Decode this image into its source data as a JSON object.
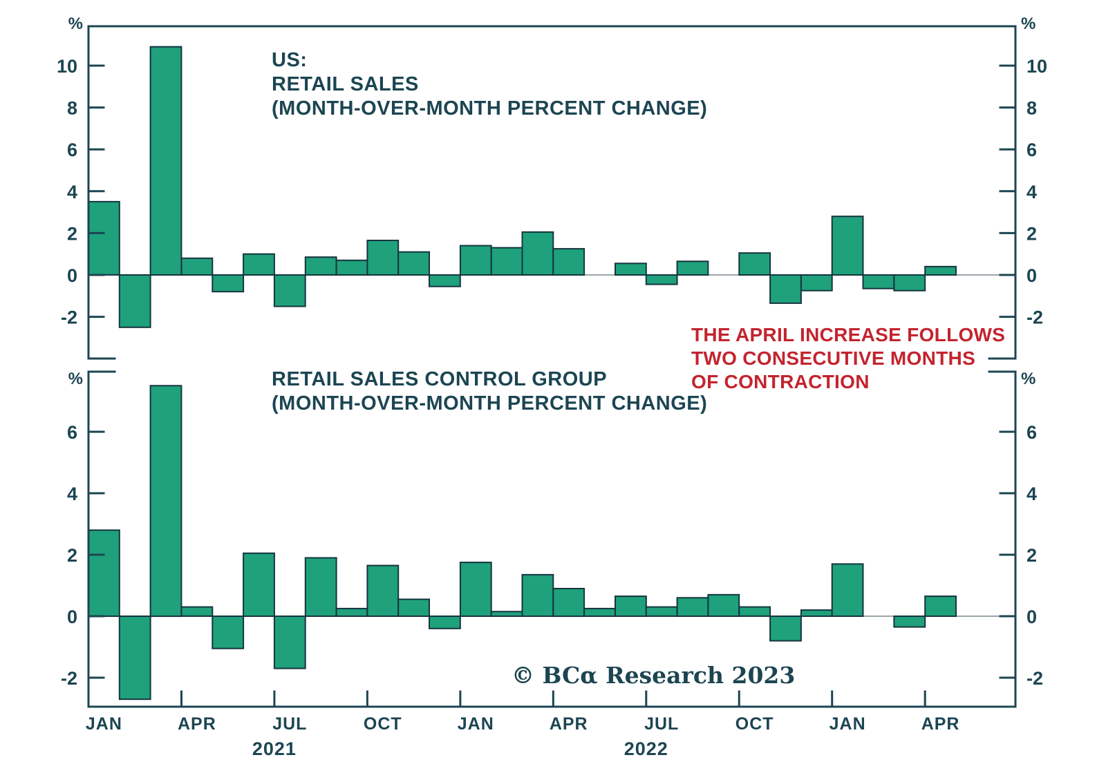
{
  "page": {
    "background": "#ffffff"
  },
  "colors": {
    "ink": "#1C4552",
    "bar_fill": "#1FA17C",
    "bar_border": "#15343E",
    "zero_line": "#99A5A9",
    "annotation_red": "#C3242E"
  },
  "annotation": {
    "lines": [
      "THE APRIL INCREASE FOLLOWS",
      "TWO CONSECUTIVE MONTHS",
      "OF CONTRACTION"
    ]
  },
  "copyright": "© BCα Research 2023",
  "chart_data": [
    {
      "type": "bar",
      "title_lines": [
        "US:",
        "RETAIL SALES",
        "(MONTH-OVER-MONTH PERCENT CHANGE)"
      ],
      "unit": "%",
      "categories": [
        "Jan 2021",
        "Feb 2021",
        "Mar 2021",
        "Apr 2021",
        "May 2021",
        "Jun 2021",
        "Jul 2021",
        "Aug 2021",
        "Sep 2021",
        "Oct 2021",
        "Nov 2021",
        "Dec 2021",
        "Jan 2022",
        "Feb 2022",
        "Mar 2022",
        "Apr 2022",
        "May 2022",
        "Jun 2022",
        "Jul 2022",
        "Aug 2022",
        "Sep 2022",
        "Oct 2022",
        "Nov 2022",
        "Dec 2022",
        "Jan 2023",
        "Feb 2023",
        "Mar 2023",
        "Apr 2023"
      ],
      "values": [
        3.5,
        -2.5,
        10.9,
        0.8,
        -0.8,
        1.0,
        -1.5,
        0.85,
        0.7,
        1.65,
        1.1,
        -0.55,
        1.4,
        1.3,
        2.05,
        1.25,
        0.0,
        0.55,
        -0.45,
        0.65,
        0.0,
        1.05,
        -1.35,
        -0.75,
        2.8,
        -0.65,
        -0.75,
        0.4
      ],
      "y_ticks": [
        10,
        8,
        6,
        4,
        2,
        0,
        -2
      ],
      "ylim": [
        -4.0,
        11.9
      ],
      "grid": false,
      "legend": null,
      "x_tick_labels": [],
      "year_labels": []
    },
    {
      "type": "bar",
      "title_lines": [
        "RETAIL SALES CONTROL GROUP",
        "(MONTH-OVER-MONTH PERCENT CHANGE)"
      ],
      "unit": "%",
      "categories": [
        "Jan 2021",
        "Feb 2021",
        "Mar 2021",
        "Apr 2021",
        "May 2021",
        "Jun 2021",
        "Jul 2021",
        "Aug 2021",
        "Sep 2021",
        "Oct 2021",
        "Nov 2021",
        "Dec 2021",
        "Jan 2022",
        "Feb 2022",
        "Mar 2022",
        "Apr 2022",
        "May 2022",
        "Jun 2022",
        "Jul 2022",
        "Aug 2022",
        "Sep 2022",
        "Oct 2022",
        "Nov 2022",
        "Dec 2022",
        "Jan 2023",
        "Feb 2023",
        "Mar 2023",
        "Apr 2023"
      ],
      "values": [
        2.8,
        -2.7,
        7.5,
        0.3,
        -1.05,
        2.05,
        -1.7,
        1.9,
        0.25,
        1.65,
        0.55,
        -0.4,
        1.75,
        0.15,
        1.35,
        0.9,
        0.25,
        0.65,
        0.3,
        0.6,
        0.7,
        0.3,
        -0.8,
        0.2,
        1.7,
        0.0,
        -0.35,
        0.65
      ],
      "y_ticks": [
        6,
        4,
        2,
        0,
        -2
      ],
      "ylim": [
        -2.95,
        7.95
      ],
      "grid": false,
      "legend": null,
      "x_tick_labels": [
        "JAN",
        "APR",
        "JUL",
        "OCT",
        "JAN",
        "APR",
        "JUL",
        "OCT",
        "JAN",
        "APR"
      ],
      "year_labels": [
        {
          "label": "2021",
          "month_index": 6
        },
        {
          "label": "2022",
          "month_index": 18
        }
      ]
    }
  ]
}
